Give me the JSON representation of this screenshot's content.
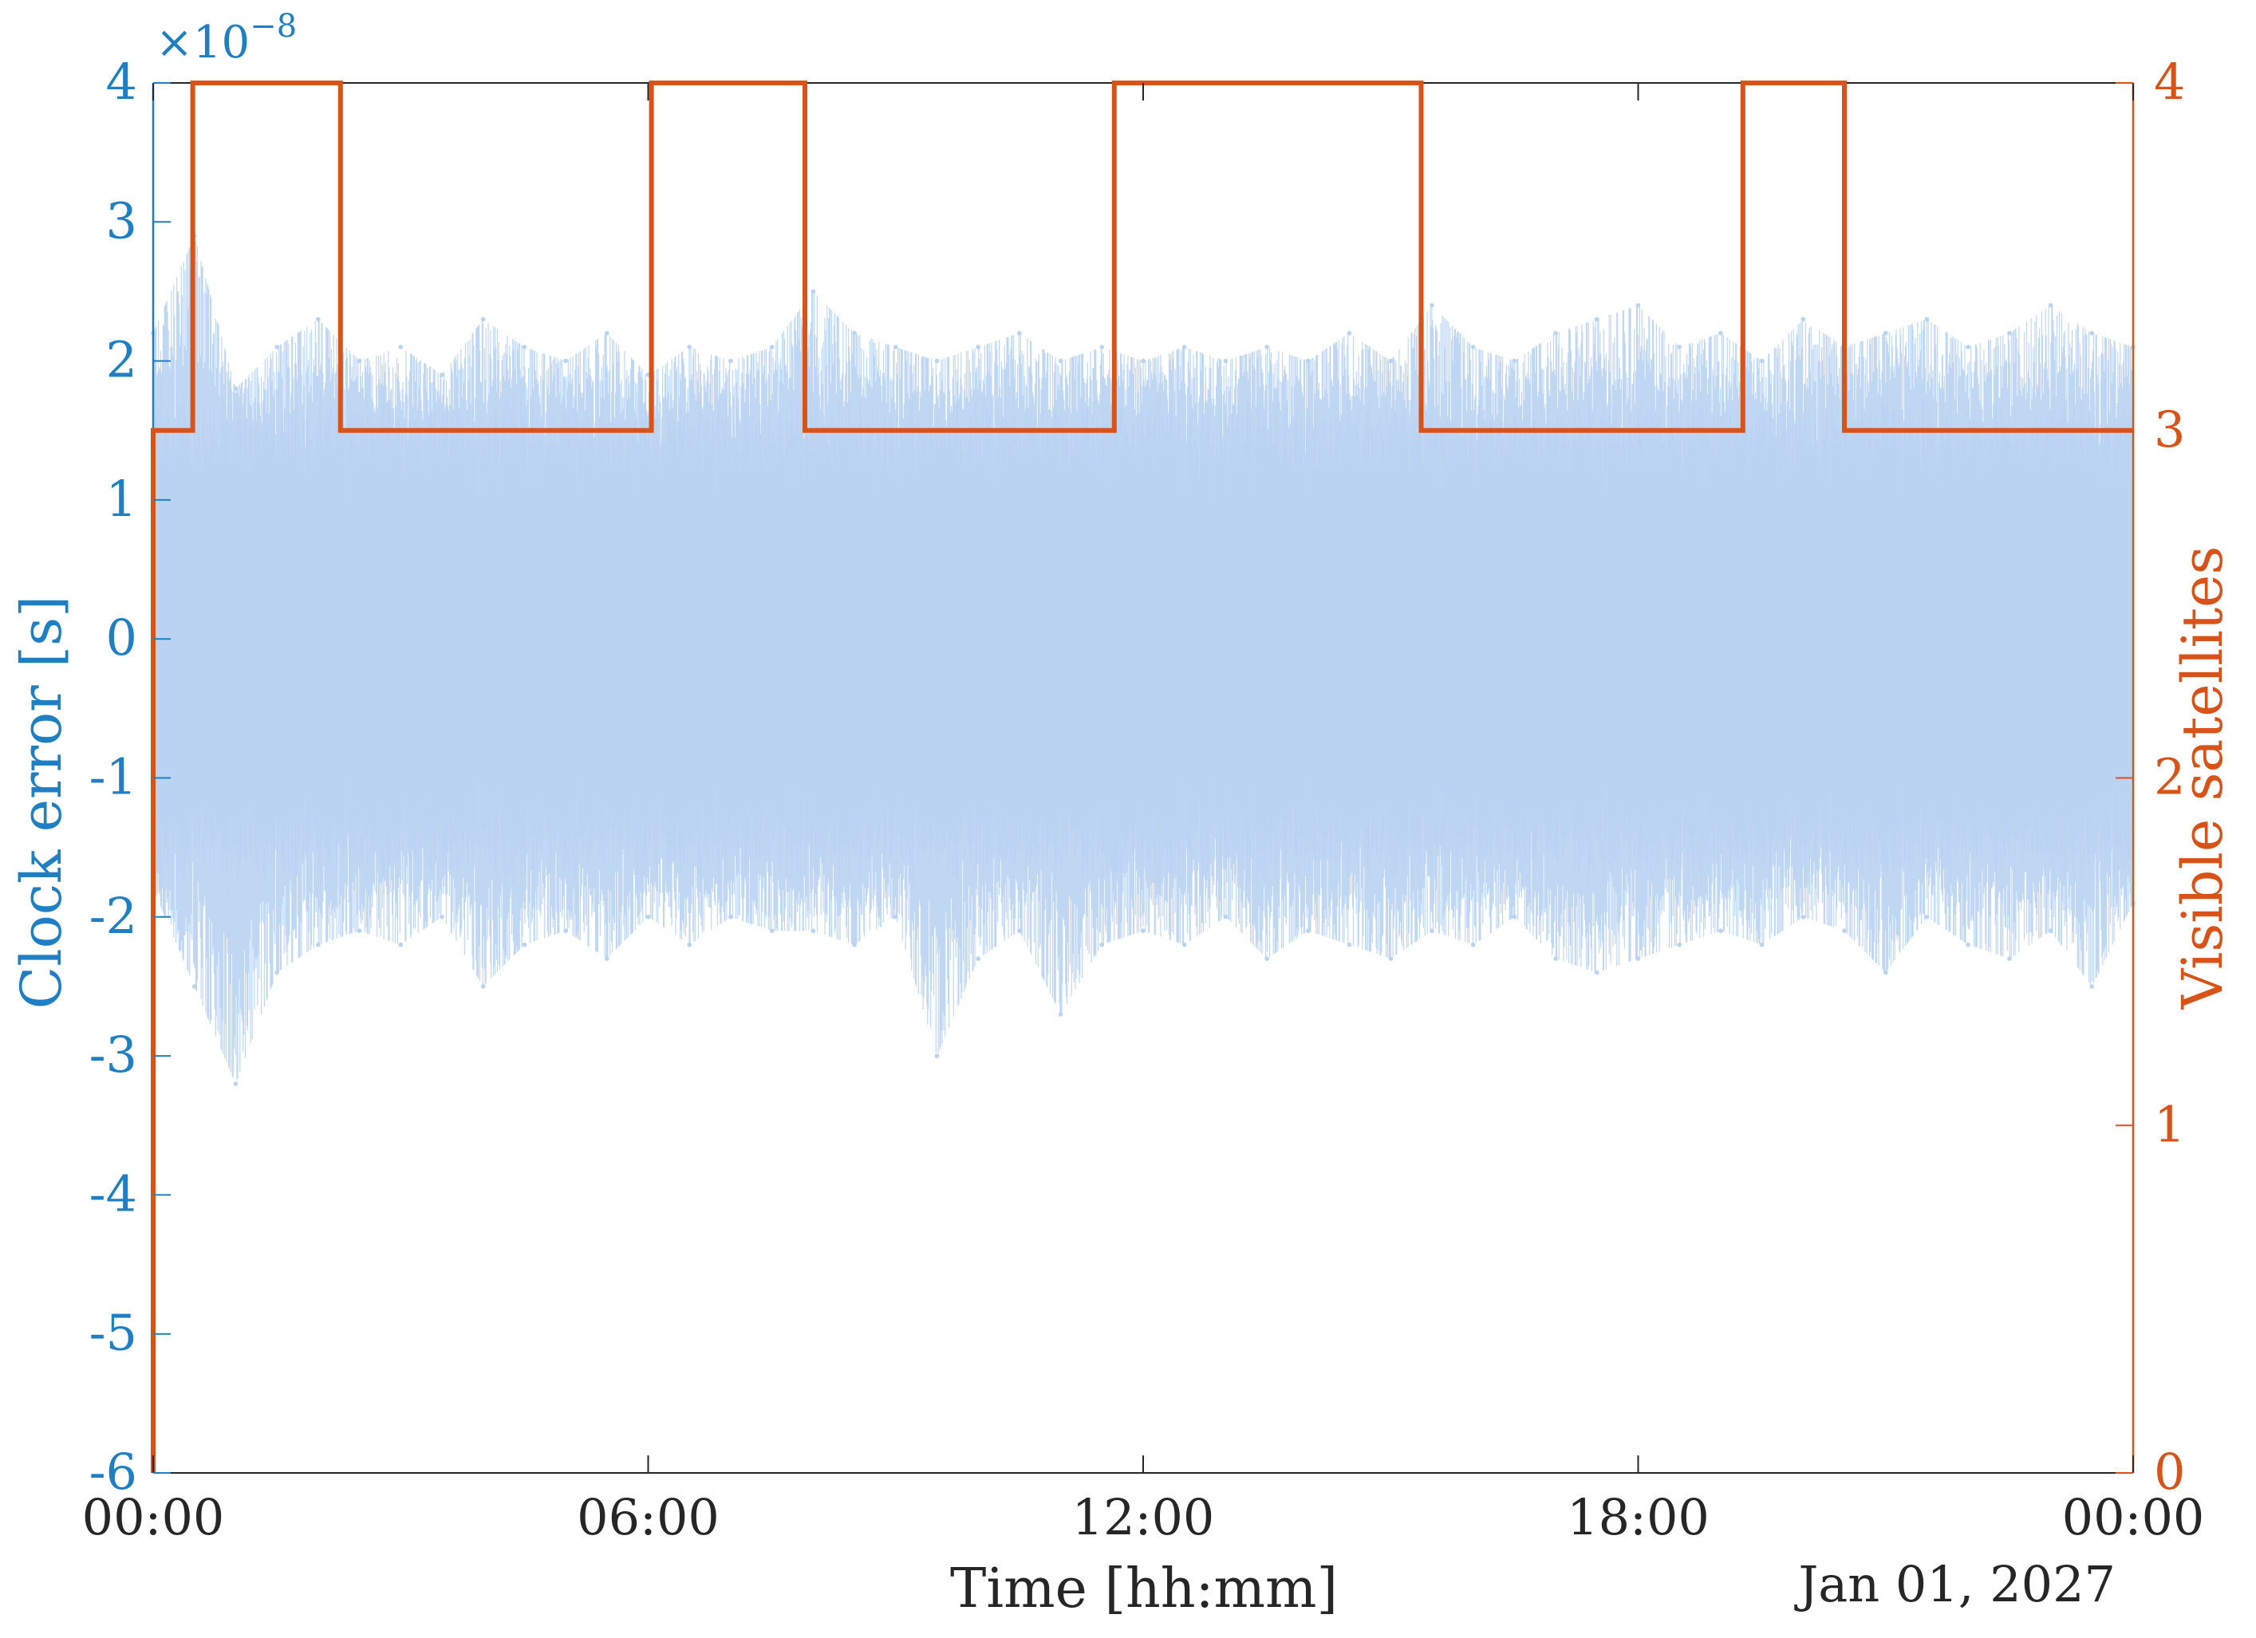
{
  "chart_data": {
    "type": "line",
    "xlabel": "Time [hh:mm]",
    "date_label": "Jan 01, 2027",
    "x_ticks": [
      "00:00",
      "06:00",
      "12:00",
      "18:00",
      "00:00"
    ],
    "xlim_hours": [
      0,
      24
    ],
    "y_left": {
      "label": "Clock error [s]",
      "exponent_label": "×10",
      "exponent_power": "−8",
      "ticks": [
        "4",
        "3",
        "2",
        "1",
        "0",
        "-1",
        "-2",
        "-3",
        "-4",
        "-5",
        "-6"
      ],
      "ylim": [
        -6,
        4
      ],
      "color": "#1f7fc4"
    },
    "y_right": {
      "label": "Visible satellites",
      "ticks": [
        "4",
        "3",
        "2",
        "1",
        "0"
      ],
      "ylim": [
        0,
        4
      ],
      "color": "#d95319"
    },
    "series": [
      {
        "name": "Clock error",
        "axis": "left",
        "style": "dots",
        "color": "#b9d3f2",
        "samples": [
          {
            "t": 0.0,
            "min": -1.8,
            "max": 2.2
          },
          {
            "t": 0.5,
            "min": -2.5,
            "max": 2.9
          },
          {
            "t": 1.0,
            "min": -3.2,
            "max": 1.8
          },
          {
            "t": 1.5,
            "min": -2.4,
            "max": 2.1
          },
          {
            "t": 2.0,
            "min": -2.2,
            "max": 2.3
          },
          {
            "t": 2.5,
            "min": -2.1,
            "max": 2.0
          },
          {
            "t": 3.0,
            "min": -2.2,
            "max": 2.1
          },
          {
            "t": 3.5,
            "min": -2.0,
            "max": 1.9
          },
          {
            "t": 4.0,
            "min": -2.5,
            "max": 2.3
          },
          {
            "t": 4.5,
            "min": -2.2,
            "max": 2.1
          },
          {
            "t": 5.0,
            "min": -2.1,
            "max": 2.0
          },
          {
            "t": 5.5,
            "min": -2.3,
            "max": 2.2
          },
          {
            "t": 6.0,
            "min": -2.0,
            "max": 1.9
          },
          {
            "t": 6.5,
            "min": -2.2,
            "max": 2.1
          },
          {
            "t": 7.0,
            "min": -2.0,
            "max": 2.0
          },
          {
            "t": 7.5,
            "min": -2.1,
            "max": 2.1
          },
          {
            "t": 8.0,
            "min": -2.1,
            "max": 2.5
          },
          {
            "t": 8.5,
            "min": -2.2,
            "max": 2.2
          },
          {
            "t": 9.0,
            "min": -2.0,
            "max": 2.1
          },
          {
            "t": 9.5,
            "min": -3.0,
            "max": 2.0
          },
          {
            "t": 10.0,
            "min": -2.3,
            "max": 2.1
          },
          {
            "t": 10.5,
            "min": -2.1,
            "max": 2.2
          },
          {
            "t": 11.0,
            "min": -2.7,
            "max": 2.0
          },
          {
            "t": 11.5,
            "min": -2.2,
            "max": 2.1
          },
          {
            "t": 12.0,
            "min": -2.1,
            "max": 2.0
          },
          {
            "t": 12.5,
            "min": -2.2,
            "max": 2.1
          },
          {
            "t": 13.0,
            "min": -2.0,
            "max": 2.0
          },
          {
            "t": 13.5,
            "min": -2.3,
            "max": 2.1
          },
          {
            "t": 14.0,
            "min": -2.1,
            "max": 2.0
          },
          {
            "t": 14.5,
            "min": -2.2,
            "max": 2.2
          },
          {
            "t": 15.0,
            "min": -2.3,
            "max": 2.0
          },
          {
            "t": 15.5,
            "min": -2.1,
            "max": 2.4
          },
          {
            "t": 16.0,
            "min": -2.2,
            "max": 2.1
          },
          {
            "t": 16.5,
            "min": -2.0,
            "max": 2.0
          },
          {
            "t": 17.0,
            "min": -2.3,
            "max": 2.2
          },
          {
            "t": 17.5,
            "min": -2.4,
            "max": 2.3
          },
          {
            "t": 18.0,
            "min": -2.3,
            "max": 2.4
          },
          {
            "t": 18.5,
            "min": -2.2,
            "max": 2.1
          },
          {
            "t": 19.0,
            "min": -2.1,
            "max": 2.2
          },
          {
            "t": 19.5,
            "min": -2.2,
            "max": 2.0
          },
          {
            "t": 20.0,
            "min": -2.0,
            "max": 2.3
          },
          {
            "t": 20.5,
            "min": -2.1,
            "max": 2.1
          },
          {
            "t": 21.0,
            "min": -2.4,
            "max": 2.2
          },
          {
            "t": 21.5,
            "min": -2.0,
            "max": 2.3
          },
          {
            "t": 22.0,
            "min": -2.2,
            "max": 2.1
          },
          {
            "t": 22.5,
            "min": -2.3,
            "max": 2.2
          },
          {
            "t": 23.0,
            "min": -2.1,
            "max": 2.4
          },
          {
            "t": 23.5,
            "min": -2.5,
            "max": 2.2
          },
          {
            "t": 24.0,
            "min": -1.9,
            "max": 2.1
          }
        ]
      },
      {
        "name": "Visible satellites",
        "axis": "right",
        "style": "step",
        "color": "#d95319",
        "points": [
          {
            "t": 0.0,
            "v": 0
          },
          {
            "t": 0.0,
            "v": 3
          },
          {
            "t": 0.48,
            "v": 3
          },
          {
            "t": 0.48,
            "v": 4
          },
          {
            "t": 2.27,
            "v": 4
          },
          {
            "t": 2.27,
            "v": 3
          },
          {
            "t": 6.04,
            "v": 3
          },
          {
            "t": 6.04,
            "v": 4
          },
          {
            "t": 7.9,
            "v": 4
          },
          {
            "t": 7.9,
            "v": 3
          },
          {
            "t": 11.65,
            "v": 3
          },
          {
            "t": 11.65,
            "v": 4
          },
          {
            "t": 15.37,
            "v": 4
          },
          {
            "t": 15.37,
            "v": 3
          },
          {
            "t": 19.27,
            "v": 3
          },
          {
            "t": 19.27,
            "v": 4
          },
          {
            "t": 20.5,
            "v": 4
          },
          {
            "t": 20.5,
            "v": 3
          },
          {
            "t": 24.0,
            "v": 3
          }
        ]
      }
    ],
    "grid": false,
    "legend": "none"
  }
}
